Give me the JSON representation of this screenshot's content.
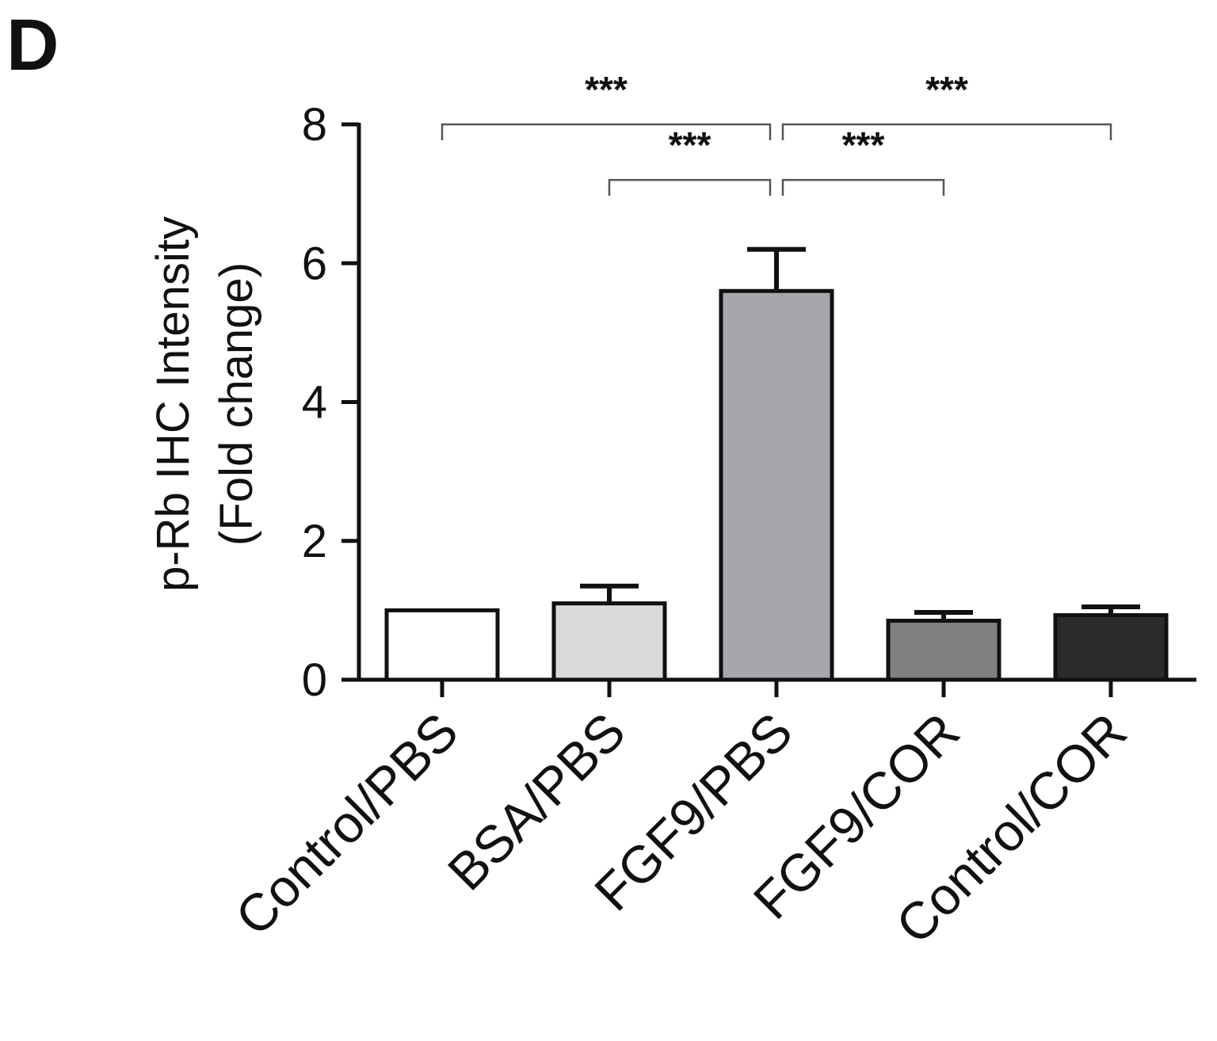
{
  "panel_label": "D",
  "chart_data": {
    "type": "bar",
    "categories": [
      "Control/PBS",
      "BSA/PBS",
      "FGF9/PBS",
      "FGF9/COR",
      "Control/COR"
    ],
    "values": [
      1.0,
      1.1,
      5.6,
      0.85,
      0.93
    ],
    "errors": [
      0.0,
      0.25,
      0.6,
      0.12,
      0.12
    ],
    "bar_colors": [
      "#ffffff",
      "#d9d9d9",
      "#a7a6ad",
      "#808080",
      "#2b2b2b"
    ],
    "ylabel_lines": [
      "p-Rb IHC Intensity",
      "(Fold change)"
    ],
    "ylim": [
      0,
      8
    ],
    "yticks": [
      0,
      2,
      4,
      6,
      8
    ],
    "grid": false,
    "legend": "none",
    "significance": [
      {
        "from": 0,
        "to": 2,
        "label": "***",
        "y": 8.0
      },
      {
        "from": 2,
        "to": 4,
        "label": "***",
        "y": 8.0
      },
      {
        "from": 1,
        "to": 2,
        "label": "***",
        "y": 7.2
      },
      {
        "from": 2,
        "to": 3,
        "label": "***",
        "y": 7.2
      }
    ]
  }
}
